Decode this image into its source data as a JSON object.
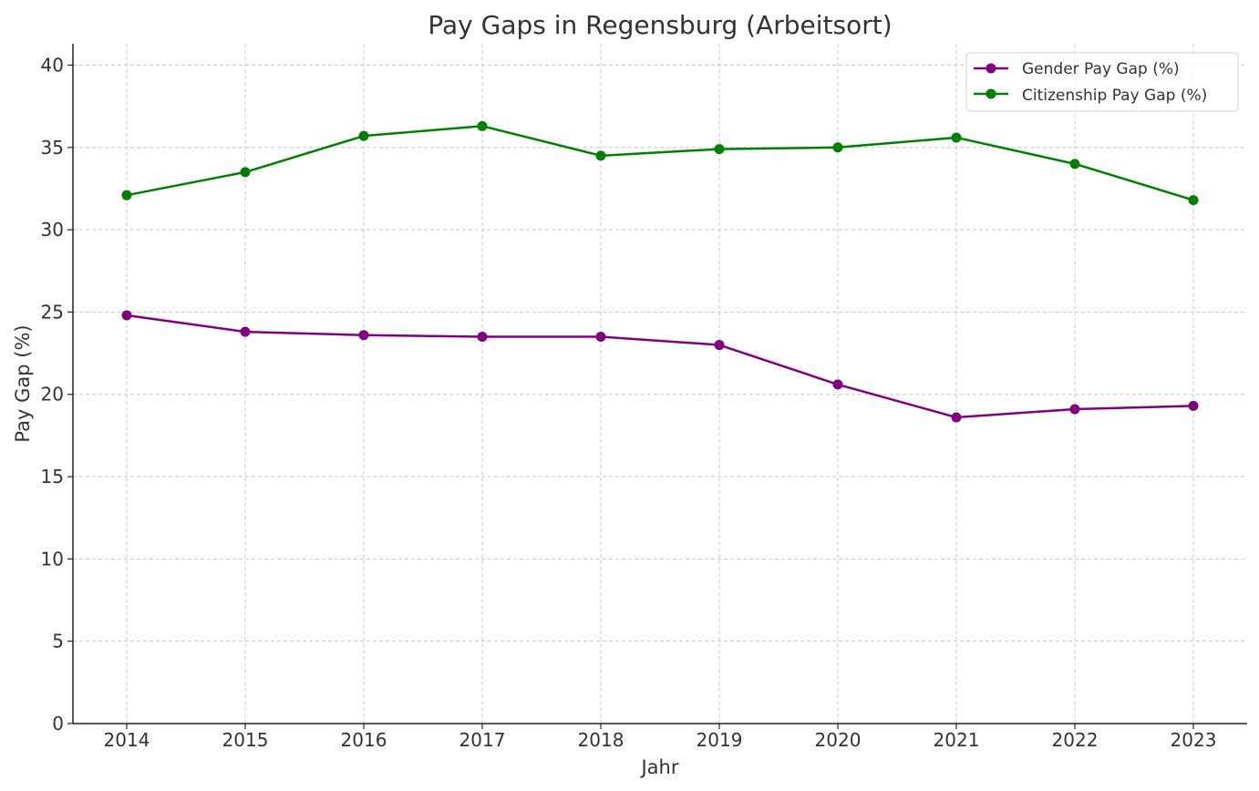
{
  "chart_data": {
    "type": "line",
    "title": "Pay Gaps in Regensburg (Arbeitsort)",
    "xlabel": "Jahr",
    "ylabel": "Pay Gap (%)",
    "x": [
      "2014",
      "2015",
      "2016",
      "2017",
      "2018",
      "2019",
      "2020",
      "2021",
      "2022",
      "2023"
    ],
    "ylim": [
      0,
      41.3
    ],
    "yticks": [
      "0",
      "5",
      "10",
      "15",
      "20",
      "25",
      "30",
      "35",
      "40"
    ],
    "grid": true,
    "legend_position": "top-right",
    "series": [
      {
        "name": "Gender Pay Gap (%)",
        "color": "#800080",
        "marker": "circle",
        "values": [
          24.8,
          23.8,
          23.6,
          23.5,
          23.5,
          23.0,
          20.6,
          18.6,
          19.1,
          19.3
        ]
      },
      {
        "name": "Citizenship Pay Gap (%)",
        "color": "#008000",
        "marker": "circle",
        "values": [
          32.1,
          33.5,
          35.7,
          36.3,
          34.5,
          34.9,
          35.0,
          35.6,
          34.0,
          31.8
        ]
      }
    ]
  }
}
